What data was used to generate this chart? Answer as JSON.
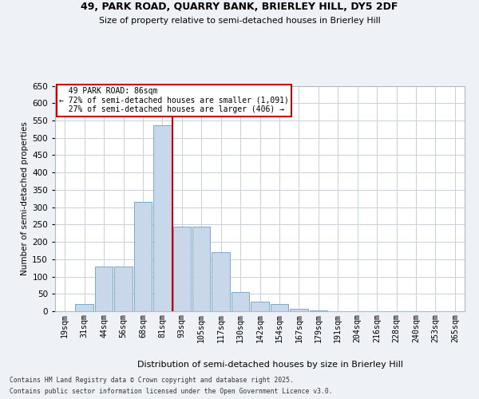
{
  "title1": "49, PARK ROAD, QUARRY BANK, BRIERLEY HILL, DY5 2DF",
  "title2": "Size of property relative to semi-detached houses in Brierley Hill",
  "xlabel": "Distribution of semi-detached houses by size in Brierley Hill",
  "ylabel": "Number of semi-detached properties",
  "categories": [
    "19sqm",
    "31sqm",
    "44sqm",
    "56sqm",
    "68sqm",
    "81sqm",
    "93sqm",
    "105sqm",
    "117sqm",
    "130sqm",
    "142sqm",
    "154sqm",
    "167sqm",
    "179sqm",
    "191sqm",
    "204sqm",
    "216sqm",
    "228sqm",
    "240sqm",
    "253sqm",
    "265sqm"
  ],
  "values": [
    0,
    20,
    130,
    130,
    315,
    535,
    245,
    245,
    170,
    55,
    27,
    20,
    7,
    2,
    0,
    0,
    0,
    0,
    0,
    0,
    0
  ],
  "bar_color": "#c8d8ea",
  "bar_edge_color": "#7aaac8",
  "property_label": "49 PARK ROAD: 86sqm",
  "pct_smaller": 72,
  "pct_larger": 27,
  "count_smaller": 1091,
  "count_larger": 406,
  "vline_color": "#cc0000",
  "vline_bin_index": 6,
  "ylim": [
    0,
    650
  ],
  "yticks": [
    0,
    50,
    100,
    150,
    200,
    250,
    300,
    350,
    400,
    450,
    500,
    550,
    600,
    650
  ],
  "background_color": "#eef2f6",
  "plot_bg_color": "#ffffff",
  "grid_color": "#c8d0da",
  "footnote1": "Contains HM Land Registry data © Crown copyright and database right 2025.",
  "footnote2": "Contains public sector information licensed under the Open Government Licence v3.0."
}
